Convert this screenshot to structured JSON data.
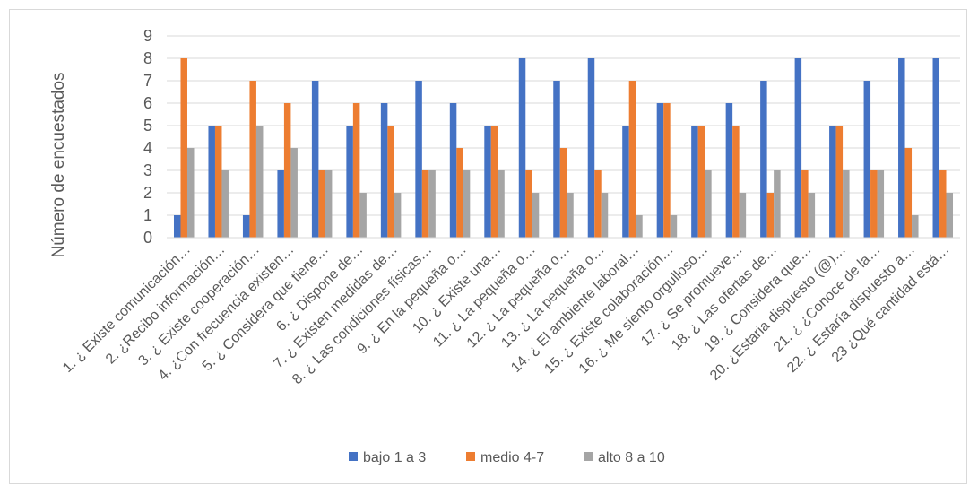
{
  "chart_data": {
    "type": "bar",
    "ylabel": "Número de encuestados",
    "xlabel": "",
    "ylim": [
      0,
      9
    ],
    "yticks": [
      0,
      1,
      2,
      3,
      4,
      5,
      6,
      7,
      8,
      9
    ],
    "grid": true,
    "legend_position": "bottom",
    "categories": [
      "1. ¿ Existe comunicación…",
      "2. ¿Recibo información…",
      "3. ¿ Existe cooperación…",
      "4. ¿Con frecuencia existen…",
      "5. ¿ Considera que tiene…",
      "6. ¿ Dispone de…",
      "7. ¿ Existen medidas de…",
      "8. ¿ Las condiciones físicas…",
      "9. ¿ En la pequeña o…",
      "10. ¿ Existe una…",
      "11. ¿ La pequeña o…",
      "12. ¿ La pequeña o…",
      "13. ¿ La pequeña o…",
      "14. ¿ El ambiente laboral…",
      "15. ¿ Existe colaboración…",
      "16. ¿ Me siento orgulloso…",
      "17. ¿ Se promueve…",
      "18. ¿ Las ofertas de…",
      "19. ¿ Considera que…",
      "20. ¿Estaria dispuesto (@)…",
      "21. ¿ ¿Conoce de la…",
      "22. ¿ Estaría dispuesto a…",
      "23 ¿Qué cantidad está…"
    ],
    "series": [
      {
        "name": "bajo  1 a 3",
        "color": "#4472c4",
        "values": [
          1,
          5,
          1,
          3,
          7,
          5,
          6,
          7,
          6,
          5,
          8,
          7,
          8,
          5,
          6,
          5,
          6,
          7,
          8,
          5,
          7,
          8,
          8
        ]
      },
      {
        "name": "medio  4-7",
        "color": "#ed7d31",
        "values": [
          8,
          5,
          7,
          6,
          3,
          6,
          5,
          3,
          4,
          5,
          3,
          4,
          3,
          7,
          6,
          5,
          5,
          2,
          3,
          5,
          3,
          4,
          3
        ]
      },
      {
        "name": "alto 8 a 10",
        "color": "#a5a5a5",
        "values": [
          4,
          3,
          5,
          4,
          3,
          2,
          2,
          3,
          3,
          3,
          2,
          2,
          2,
          1,
          1,
          3,
          2,
          3,
          2,
          3,
          3,
          1,
          2
        ]
      }
    ]
  }
}
